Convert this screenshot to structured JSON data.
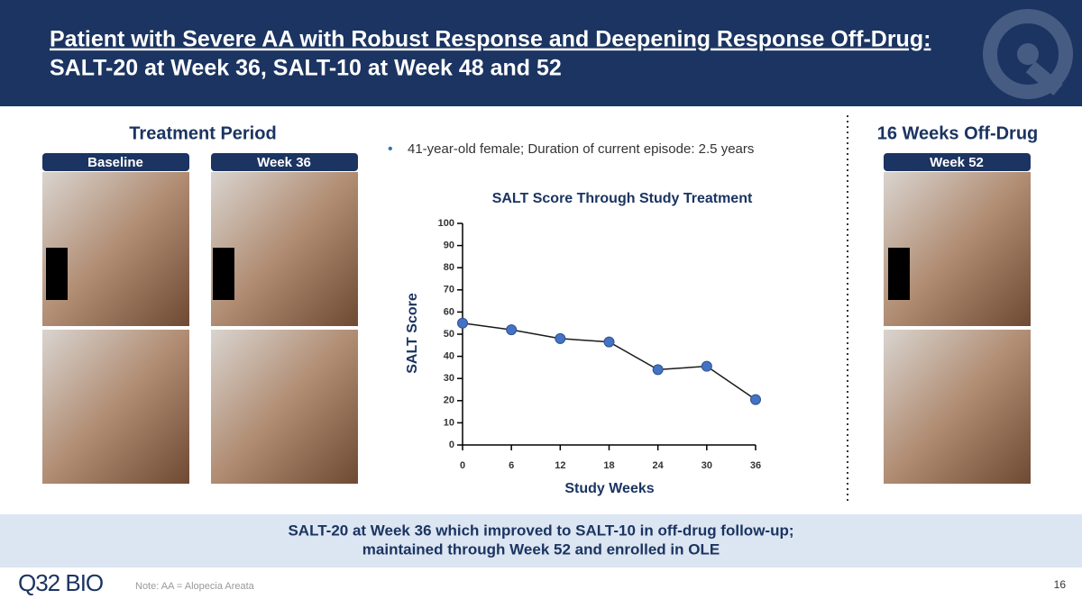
{
  "header": {
    "title_line1": "Patient with Severe AA with Robust Response and Deepening Response Off-Drug:",
    "title_line2": "SALT-20 at Week 36, SALT-10 at Week 48 and 52"
  },
  "treatment": {
    "heading": "Treatment Period",
    "tabs": [
      "Baseline",
      "Week 36"
    ]
  },
  "off_drug": {
    "heading": "16 Weeks Off-Drug",
    "tabs": [
      "Week 52"
    ]
  },
  "bullet": "41-year-old female; Duration of current episode: 2.5 years",
  "chart_data": {
    "type": "line",
    "title": "SALT Score Through Study Treatment",
    "x_label": "Study Weeks",
    "y_label": "SALT Score",
    "x": [
      0,
      6,
      12,
      18,
      24,
      30,
      36
    ],
    "values": [
      55,
      52,
      48,
      46.5,
      34,
      35.5,
      20.5
    ],
    "color": "#1a1a1a",
    "marker_color": "#4472c4",
    "xlim": [
      0,
      36
    ],
    "xticks": [
      0,
      6,
      12,
      18,
      24,
      30,
      36
    ],
    "ylim": [
      0,
      100
    ],
    "yticks": [
      0,
      10,
      20,
      30,
      40,
      50,
      60,
      70,
      80,
      90,
      100
    ],
    "grid": false
  },
  "banner": {
    "line1": "SALT-20 at Week 36 which improved to SALT-10 in off-drug follow-up;",
    "line2": "maintained through Week 52 and enrolled in OLE"
  },
  "footer": {
    "logo": "Q32 BIO",
    "note": "Note: AA = Alopecia Areata",
    "page": "16"
  }
}
